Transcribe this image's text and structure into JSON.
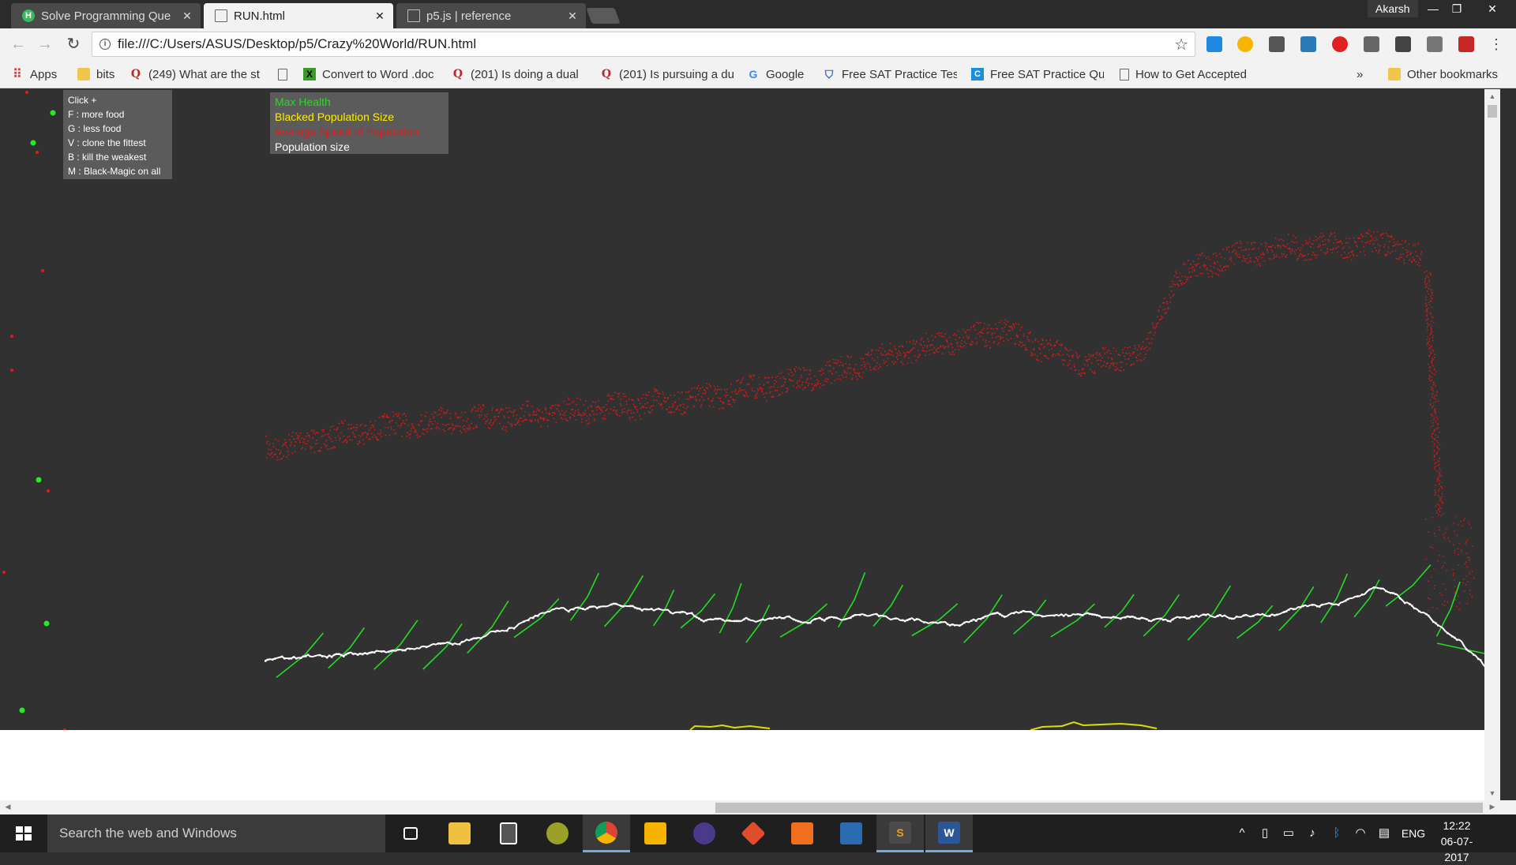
{
  "browser": {
    "tabs": [
      {
        "title": "Solve Programming Que",
        "favicon": "hackerearth-icon",
        "active": false
      },
      {
        "title": "RUN.html",
        "favicon": "document-icon",
        "active": true
      },
      {
        "title": "p5.js | reference",
        "favicon": "document-icon",
        "active": false
      }
    ],
    "profile_name": "Akarsh",
    "url": "file:///C:/Users/ASUS/Desktop/p5/Crazy%20World/RUN.html",
    "bookmarks": [
      {
        "label": "Apps",
        "icon": "apps-grid-icon"
      },
      {
        "label": "bits",
        "icon": "folder-icon"
      },
      {
        "label": "(249) What are the st",
        "icon": "quora-icon"
      },
      {
        "label": "",
        "icon": "document-icon"
      },
      {
        "label": "Convert to Word .doc",
        "icon": "converter-icon"
      },
      {
        "label": "(201) Is doing a dual",
        "icon": "quora-icon"
      },
      {
        "label": "(201) Is pursuing a du",
        "icon": "quora-icon"
      },
      {
        "label": "Google",
        "icon": "google-icon"
      },
      {
        "label": "Free SAT Practice Test",
        "icon": "shield-icon"
      },
      {
        "label": "Free SAT Practice Que",
        "icon": "sat-icon"
      },
      {
        "label": "How to Get Accepted",
        "icon": "document-icon"
      }
    ],
    "overflow_label": "»",
    "other_bookmarks": "Other bookmarks"
  },
  "simulation": {
    "controls": [
      "Click +",
      "F : more food",
      "G : less food",
      "V : clone the fittest",
      "B : kill the weakest",
      "M : Black-Magic on all"
    ],
    "legend": [
      {
        "label": "Max Health",
        "color": "#22dd22"
      },
      {
        "label": "Blacked Population Size",
        "color": "#ffee00"
      },
      {
        "label": "Average Speed of Population",
        "color": "#e21b1b"
      },
      {
        "label": "Population size",
        "color": "#ffffff"
      }
    ],
    "colors": {
      "background": "#313131",
      "food": "#22ee22",
      "poison": "#e21b1b",
      "avg_speed": "#d11a1a",
      "max_health": "#22dd22",
      "population": "#ffffff",
      "blacked": "#dddd00"
    }
  },
  "taskbar": {
    "search_placeholder": "Search the web and Windows",
    "apps": [
      "task-view-icon",
      "file-explorer-icon",
      "calculator-icon",
      "app-icon",
      "chrome-icon",
      "keep-icon",
      "eclipse-icon",
      "git-icon",
      "app-icon",
      "remote-desktop-icon",
      "sublime-icon",
      "word-icon"
    ],
    "language": "ENG",
    "time": "12:22",
    "date": "06-07-2017"
  }
}
